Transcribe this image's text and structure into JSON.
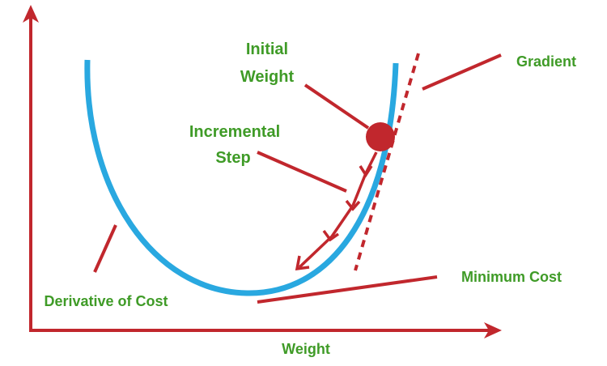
{
  "labels": {
    "initial_weight_line1": "Initial",
    "initial_weight_line2": "Weight",
    "incremental_step_line1": "Incremental",
    "incremental_step_line2": "Step",
    "gradient": "Gradient",
    "minimum_cost": "Minimum Cost",
    "derivative_of_cost": "Derivative of Cost",
    "x_axis": "Weight"
  },
  "colors": {
    "curve": "#29a8e0",
    "annotation": "#c1272d",
    "text": "#3f9b27"
  }
}
